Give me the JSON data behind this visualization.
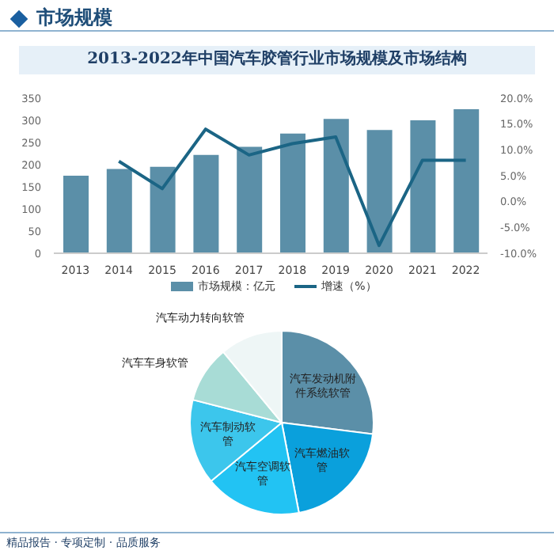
{
  "chart_data": [
    {
      "type": "bar",
      "title": "2013-2022年中国汽车胶管行业市场规模及市场结构",
      "annotations": [
        "市场规模"
      ],
      "categories": [
        "2013",
        "2014",
        "2015",
        "2016",
        "2017",
        "2018",
        "2019",
        "2020",
        "2021",
        "2022"
      ],
      "series": [
        {
          "name": "市场规模：亿元",
          "type": "bar",
          "color": "#5b8fa8",
          "values": [
            175,
            190,
            195,
            222,
            240,
            270,
            303,
            278,
            300,
            325
          ]
        },
        {
          "name": "增速（%）",
          "type": "line",
          "axis": "y2",
          "color": "#1b6585",
          "values": [
            null,
            7.8,
            2.5,
            14,
            9,
            11.2,
            12.5,
            -8.5,
            8,
            8
          ]
        }
      ],
      "ylim": [
        0,
        350
      ],
      "yticks": [
        0,
        50,
        100,
        150,
        200,
        250,
        300,
        350
      ],
      "y2lim": [
        -10,
        20
      ],
      "y2ticks": [
        {
          "value": -10,
          "label": "-10.0%"
        },
        {
          "value": -5,
          "label": "-5.0%"
        },
        {
          "value": 0,
          "label": "0.0%"
        },
        {
          "value": 5,
          "label": "5.0%"
        },
        {
          "value": 10,
          "label": "10.0%"
        },
        {
          "value": 15,
          "label": "15.0%"
        },
        {
          "value": 20,
          "label": "20.0%"
        }
      ],
      "legend": "bottom",
      "marker": "none",
      "line_style": "solid"
    },
    {
      "type": "pie",
      "annotations": [
        "精品报告 · 专项定制 · 品质服务"
      ],
      "categories": [
        "汽车发动机附件系统软管",
        "汽车燃油软管",
        "汽车空调软管",
        "汽车制动软管",
        "汽车车身软管",
        "汽车动力转向软管"
      ],
      "values": [
        27,
        20,
        17,
        15,
        10,
        11
      ],
      "colors": [
        "#5b8fa8",
        "#0aa0dc",
        "#22c3f3",
        "#3cc6ec",
        "#a8dcd6",
        "#eef6f6"
      ]
    }
  ]
}
